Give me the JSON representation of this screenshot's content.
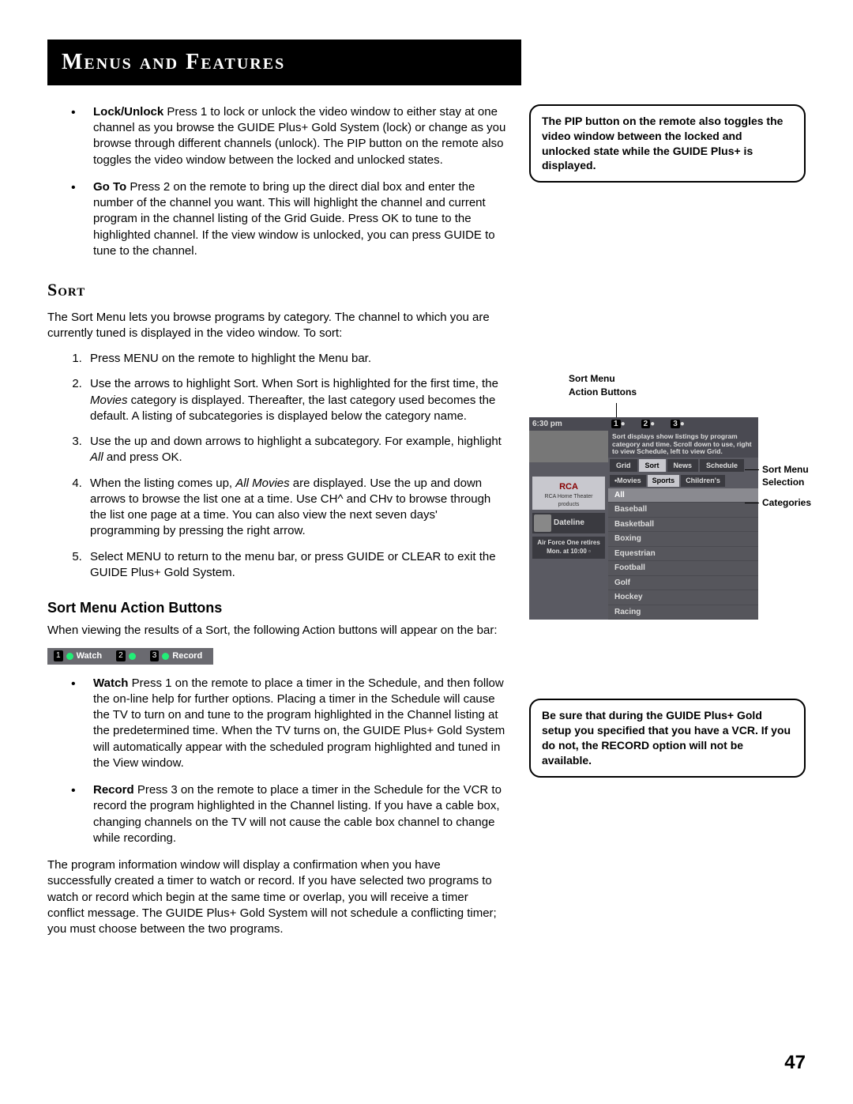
{
  "header": {
    "title": "Menus and Features"
  },
  "bullets_top": [
    {
      "lead": "Lock/Unlock",
      "text": "  Press 1 to lock or unlock the video window to either stay at one channel as you browse the GUIDE Plus+ Gold System (lock) or change as you browse through different channels (unlock). The PIP button on the remote also toggles the video window between the locked and unlocked states."
    },
    {
      "lead": "Go To",
      "text": "  Press 2 on the remote to bring up the direct dial box and enter the number of the channel you want. This will highlight the channel and current program in the channel listing of the Grid Guide. Press OK to tune to the highlighted channel. If the view window is unlocked, you can press GUIDE to tune to the channel."
    }
  ],
  "sort": {
    "heading": "Sort",
    "intro": "The Sort Menu lets you browse programs by category. The channel to which you are currently tuned is displayed in the video window. To sort:",
    "steps": [
      "Press MENU on the remote to highlight the Menu bar.",
      "Use the arrows to highlight Sort. When Sort is highlighted for the first time, the Movies category is displayed. Thereafter, the last category used becomes the default. A listing of subcategories is displayed below the category name.",
      "Use the up and down arrows to highlight a subcategory. For example, highlight All and press OK.",
      "When the listing comes up, All Movies are displayed.  Use the up and down arrows to browse the list one at a time. Use CH^ and CHv to browse through the list one page at a time. You can also view the next seven days' programming by pressing the right arrow.",
      "Select MENU to return to the menu bar, or press GUIDE or CLEAR to exit the GUIDE Plus+ Gold System."
    ],
    "italics": {
      "1": "Movies",
      "2": "All",
      "3": "All Movies"
    }
  },
  "action_buttons": {
    "heading": "Sort Menu Action Buttons",
    "intro": "When viewing the results of a Sort, the following Action buttons will appear on the bar:",
    "buttons": [
      {
        "num": "1",
        "label": "Watch"
      },
      {
        "num": "2",
        "label": ""
      },
      {
        "num": "3",
        "label": "Record"
      }
    ],
    "items": [
      {
        "lead": "Watch",
        "text": "   Press 1 on the remote to place a timer in the Schedule, and then follow the on-line help for further options. Placing a timer in the Schedule will cause the TV to turn on and tune to the program highlighted in the Channel listing at the predetermined time. When the TV turns on, the GUIDE Plus+ Gold System will automatically appear with the scheduled program highlighted and tuned in the View window."
      },
      {
        "lead": "Record",
        "text": "   Press 3 on the remote to place a timer in the Schedule for the VCR to record the program highlighted in the Channel listing. If you have a cable box, changing channels on the TV will not cause the cable box channel to change while recording."
      }
    ],
    "closing": "The program information window will display a confirmation when you have successfully created a timer to watch or record. If you have selected two programs to watch or record which begin at the same time or overlap, you will receive a timer conflict message. The GUIDE Plus+ Gold System will not schedule a conflicting timer; you must choose between the two programs."
  },
  "sidebar": {
    "note1": "The PIP button on the remote also toggles the video window between the locked and unlocked state while the GUIDE Plus+ is displayed.",
    "note2": "Be sure that during the GUIDE Plus+ Gold setup you specified that you have a VCR. If you do not, the RECORD option will not be available.",
    "diagram": {
      "title": "Sort Menu\nAction Buttons",
      "callouts": [
        "Sort Menu Selection",
        "Categories"
      ],
      "time": "6:30 pm",
      "desc": "Sort displays show listings by program category and time. Scroll down to use, right to view Schedule, left to view Grid.",
      "tabs": [
        "Grid",
        "Sort",
        "News",
        "Schedule"
      ],
      "subtabs": [
        "•Movies",
        "Sports",
        "Children's"
      ],
      "logo": "RCA",
      "logo_sub": "RCA Home Theater products",
      "show": "Dateline",
      "footer": "Air Force One retires\nMon. at 10:00",
      "categories": [
        "All",
        "Baseball",
        "Basketball",
        "Boxing",
        "Equestrian",
        "Football",
        "Golf",
        "Hockey",
        "Racing"
      ]
    }
  },
  "page_number": "47"
}
